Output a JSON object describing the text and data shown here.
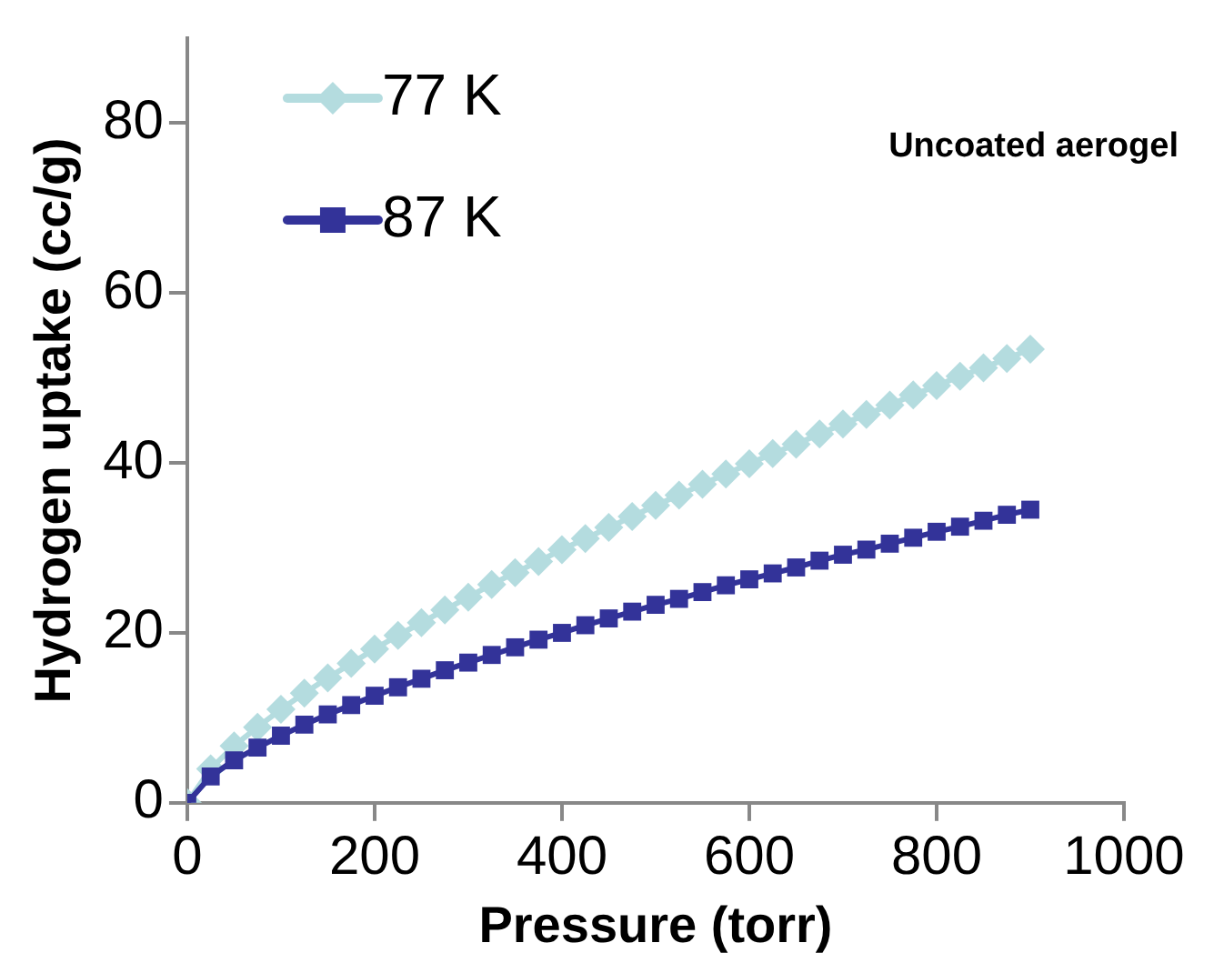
{
  "chart_data": {
    "type": "line",
    "xlabel": "Pressure (torr)",
    "ylabel": "Hydrogen uptake (cc/g)",
    "x": [
      0,
      25,
      50,
      75,
      100,
      125,
      150,
      175,
      200,
      225,
      250,
      275,
      300,
      325,
      350,
      375,
      400,
      425,
      450,
      475,
      500,
      525,
      550,
      575,
      600,
      625,
      650,
      675,
      700,
      725,
      750,
      775,
      800,
      825,
      850,
      875,
      900
    ],
    "series": [
      {
        "name": "77 K",
        "color": "#b4dcdf",
        "marker": "diamond",
        "values": [
          0,
          4.0,
          6.7,
          8.9,
          11.0,
          12.9,
          14.7,
          16.4,
          18.1,
          19.7,
          21.2,
          22.7,
          24.2,
          25.7,
          27.1,
          28.4,
          29.8,
          31.1,
          32.4,
          33.7,
          35.0,
          36.2,
          37.5,
          38.7,
          39.9,
          41.1,
          42.2,
          43.4,
          44.6,
          45.7,
          46.8,
          48.0,
          49.1,
          50.2,
          51.2,
          52.3,
          53.4
        ]
      },
      {
        "name": "87 K",
        "color": "#333399",
        "marker": "square",
        "values": [
          0,
          3.1,
          5.0,
          6.5,
          7.9,
          9.2,
          10.4,
          11.5,
          12.6,
          13.6,
          14.6,
          15.6,
          16.5,
          17.4,
          18.3,
          19.2,
          20.0,
          20.9,
          21.7,
          22.5,
          23.3,
          24.0,
          24.8,
          25.6,
          26.3,
          27.0,
          27.7,
          28.5,
          29.2,
          29.8,
          30.5,
          31.2,
          31.9,
          32.5,
          33.2,
          33.9,
          34.5
        ]
      }
    ],
    "xlim": [
      0,
      1000
    ],
    "xticks": [
      0,
      200,
      400,
      600,
      800,
      1000
    ],
    "ylim": [
      0,
      90
    ],
    "yticks": [
      0,
      20,
      40,
      60,
      80
    ],
    "grid": false,
    "legend": "top left",
    "line_style": "solid",
    "annotations": [
      "Uncoated aerogel"
    ]
  }
}
